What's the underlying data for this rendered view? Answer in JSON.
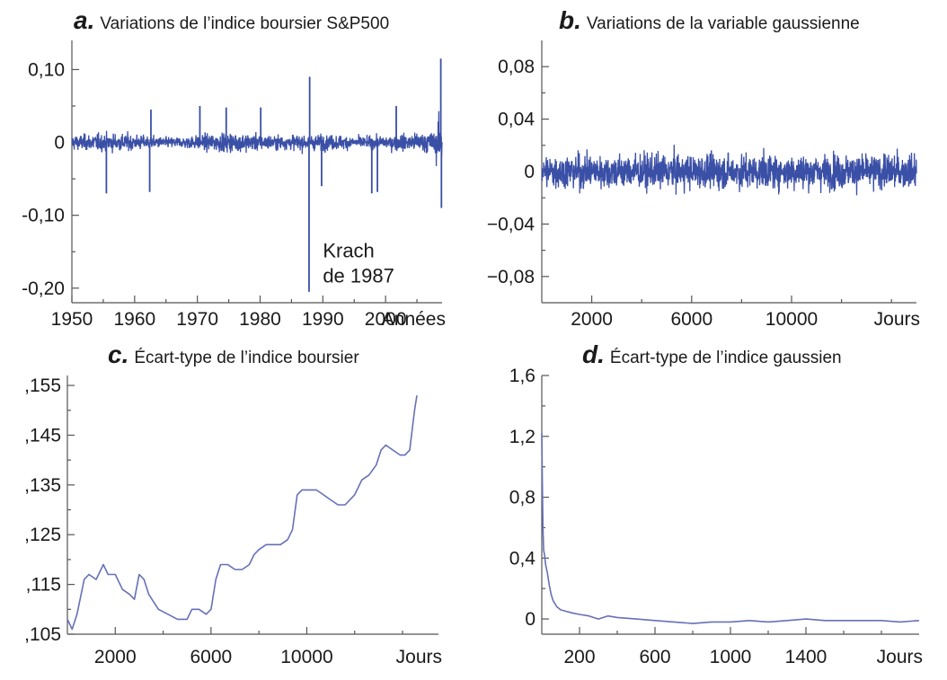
{
  "chart_data": [
    {
      "id": "a",
      "type": "line",
      "letter": "a.",
      "title": "Variations de l’indice boursier S&P500",
      "xlabel": "Années",
      "xlim": [
        1950,
        2009
      ],
      "ylim": [
        -0.22,
        0.14
      ],
      "x_ticks": [
        1950,
        1960,
        1970,
        1980,
        1990,
        2000
      ],
      "x_tick_labels": [
        "1950",
        "1960",
        "1970",
        "1980",
        "1990",
        "2000"
      ],
      "y_ticks": [
        0.1,
        0,
        -0.1,
        -0.2
      ],
      "y_tick_labels": [
        "0,10",
        "0",
        "-0,10",
        "-0,20"
      ],
      "color": "#3a4fa6",
      "noise_amplitude": 0.012,
      "spikes": [
        {
          "x": 1955.5,
          "y": -0.07
        },
        {
          "x": 1962.4,
          "y": -0.068
        },
        {
          "x": 1962.6,
          "y": 0.045
        },
        {
          "x": 1970.4,
          "y": 0.05
        },
        {
          "x": 1974.6,
          "y": 0.048
        },
        {
          "x": 1980.1,
          "y": 0.048
        },
        {
          "x": 1987.8,
          "y": -0.205
        },
        {
          "x": 1987.9,
          "y": 0.09
        },
        {
          "x": 1989.8,
          "y": -0.06
        },
        {
          "x": 1997.8,
          "y": -0.07
        },
        {
          "x": 1998.7,
          "y": -0.068
        },
        {
          "x": 2001.7,
          "y": 0.05
        },
        {
          "x": 2008.8,
          "y": 0.115
        },
        {
          "x": 2008.9,
          "y": -0.09
        }
      ],
      "annotation": {
        "lines": [
          "Krach",
          "de 1987"
        ],
        "x": 1990,
        "y": -0.158
      }
    },
    {
      "id": "b",
      "type": "line",
      "letter": "b.",
      "title": "Variations de la variable gaussienne",
      "xlabel": "Jours",
      "xlim": [
        0,
        15000
      ],
      "ylim": [
        -0.1,
        0.1
      ],
      "x_ticks": [
        2000,
        6000,
        10000
      ],
      "x_tick_labels": [
        "2000",
        "6000",
        "10000"
      ],
      "y_ticks": [
        0.08,
        0.04,
        0,
        -0.04,
        -0.08
      ],
      "y_tick_labels": [
        "0,08",
        "0,04",
        "0",
        "−0,04",
        "−0,08"
      ],
      "color": "#3a4fa6",
      "noise_amplitude": 0.012
    },
    {
      "id": "c",
      "type": "line",
      "letter": "c.",
      "title": "Écart-type de l’indice boursier",
      "xlabel": "Jours",
      "xlim": [
        0,
        15500
      ],
      "ylim": [
        0.105,
        0.157
      ],
      "x_ticks": [
        2000,
        6000,
        10000
      ],
      "x_tick_labels": [
        "2000",
        "6000",
        "10000"
      ],
      "y_ticks": [
        0.155,
        0.145,
        0.135,
        0.125,
        0.115,
        0.105
      ],
      "y_tick_labels": [
        ",155",
        ",145",
        ",135",
        ",125",
        ",115",
        ",105"
      ],
      "color": "#6670b8",
      "x": [
        0,
        200,
        400,
        700,
        900,
        1200,
        1500,
        1700,
        2000,
        2300,
        2600,
        2800,
        3000,
        3200,
        3400,
        3800,
        4200,
        4600,
        5000,
        5200,
        5500,
        5800,
        6000,
        6200,
        6400,
        6700,
        7000,
        7300,
        7600,
        7800,
        8000,
        8300,
        8600,
        8900,
        9200,
        9400,
        9600,
        9800,
        10100,
        10400,
        10700,
        11000,
        11300,
        11600,
        12000,
        12300,
        12600,
        12900,
        13100,
        13300,
        13600,
        13900,
        14100,
        14300,
        14400,
        14500,
        14600
      ],
      "y": [
        0.108,
        0.106,
        0.109,
        0.116,
        0.117,
        0.116,
        0.119,
        0.117,
        0.117,
        0.114,
        0.113,
        0.112,
        0.117,
        0.116,
        0.113,
        0.11,
        0.109,
        0.108,
        0.108,
        0.11,
        0.11,
        0.109,
        0.11,
        0.116,
        0.119,
        0.119,
        0.118,
        0.118,
        0.119,
        0.121,
        0.122,
        0.123,
        0.123,
        0.123,
        0.124,
        0.126,
        0.133,
        0.134,
        0.134,
        0.134,
        0.133,
        0.132,
        0.131,
        0.131,
        0.133,
        0.136,
        0.137,
        0.139,
        0.142,
        0.143,
        0.142,
        0.141,
        0.141,
        0.142,
        0.146,
        0.15,
        0.153
      ]
    },
    {
      "id": "d",
      "type": "line",
      "letter": "d.",
      "title": "Écart-type de l’indice gaussien",
      "xlabel": "Jours",
      "xlim": [
        0,
        2000
      ],
      "ylim": [
        -0.1,
        1.6
      ],
      "x_ticks": [
        200,
        600,
        1000,
        1400
      ],
      "x_tick_labels": [
        "200",
        "600",
        "1000",
        "1400"
      ],
      "y_ticks": [
        1.6,
        1.2,
        0.8,
        0.4,
        0
      ],
      "y_tick_labels": [
        "1,6",
        "1,2",
        "0,8",
        "0,4",
        "0"
      ],
      "color": "#6670b8",
      "x": [
        0,
        3,
        6,
        10,
        15,
        20,
        30,
        40,
        50,
        60,
        80,
        100,
        130,
        160,
        200,
        250,
        300,
        350,
        400,
        500,
        600,
        700,
        800,
        900,
        1000,
        1100,
        1200,
        1300,
        1400,
        1500,
        1600,
        1700,
        1800,
        1900,
        2000
      ],
      "y": [
        1.22,
        0.9,
        0.6,
        0.45,
        0.42,
        0.36,
        0.3,
        0.22,
        0.16,
        0.12,
        0.08,
        0.06,
        0.05,
        0.04,
        0.03,
        0.02,
        0.0,
        0.02,
        0.01,
        0.0,
        -0.01,
        -0.02,
        -0.03,
        -0.02,
        -0.02,
        -0.01,
        -0.02,
        -0.01,
        0.0,
        -0.01,
        -0.01,
        -0.01,
        -0.01,
        -0.02,
        -0.01
      ]
    }
  ]
}
